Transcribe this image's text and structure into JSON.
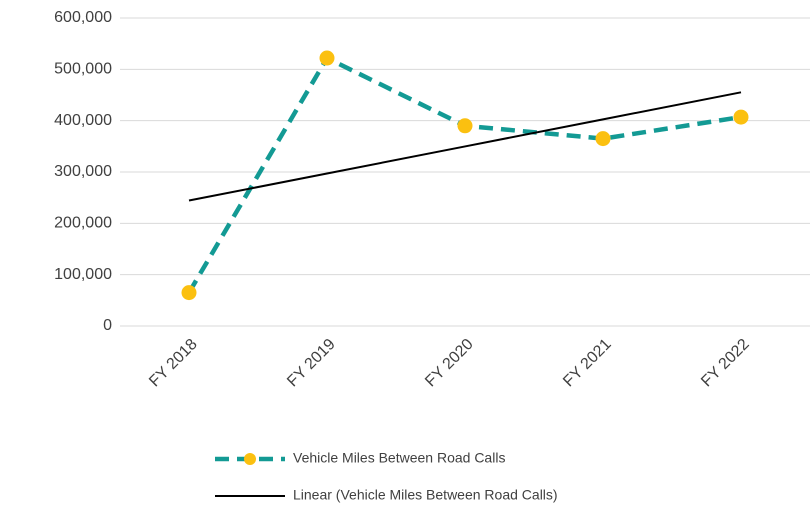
{
  "chart_data": {
    "type": "line",
    "categories": [
      "FY 2018",
      "FY 2019",
      "FY 2020",
      "FY 2021",
      "FY 2022"
    ],
    "series": [
      {
        "name": "Vehicle Miles Between Road Calls",
        "color": "#139a94",
        "marker_color": "#fbc010",
        "dashed": true,
        "values": [
          65000,
          522000,
          390000,
          365000,
          407000
        ]
      },
      {
        "name": "Linear (Vehicle Miles Between Road Calls)",
        "color": "#000000",
        "dashed": false,
        "values": [
          244400,
          297100,
          349800,
          402500,
          455200
        ]
      }
    ],
    "ylim": [
      0,
      600000
    ],
    "yticks": [
      0,
      {
        "value": 100000,
        "label": "100,000"
      },
      {
        "value": 200000,
        "label": "200,000"
      },
      {
        "value": 300000,
        "label": "300,000"
      },
      {
        "value": 400000,
        "label": "400,000"
      },
      {
        "value": 500000,
        "label": "500,000"
      },
      {
        "value": 600000,
        "label": "600,000"
      }
    ],
    "grid": true,
    "legend": "bottom"
  }
}
